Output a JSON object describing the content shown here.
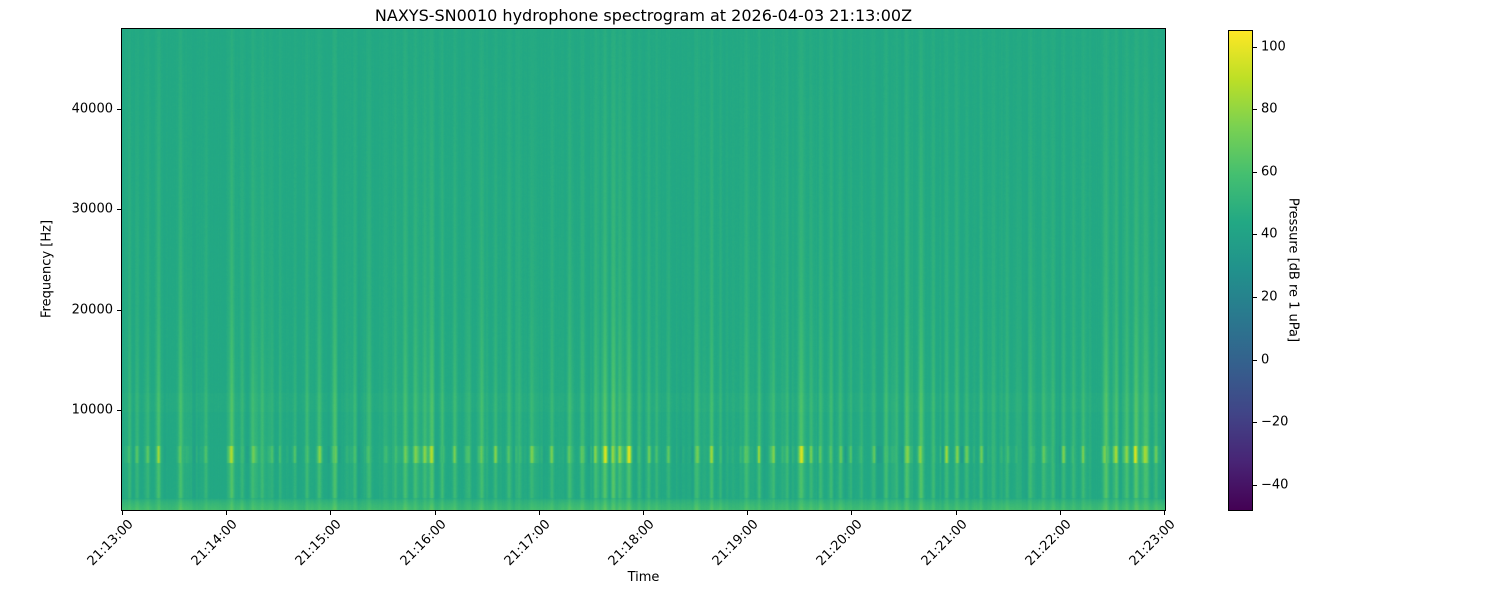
{
  "chart_data": {
    "type": "heatmap",
    "subtype": "spectrogram",
    "title": "NAXYS-SN0010 hydrophone spectrogram at 2026-04-03 21:13:00Z",
    "xlabel": "Time",
    "ylabel": "Frequency [Hz]",
    "x_tick_labels": [
      "21:13:00",
      "21:14:00",
      "21:15:00",
      "21:16:00",
      "21:17:00",
      "21:18:00",
      "21:19:00",
      "21:20:00",
      "21:21:00",
      "21:22:00",
      "21:23:00"
    ],
    "y_tick_values": [
      40000,
      30000,
      20000,
      10000
    ],
    "y_tick_labels": [
      "40000",
      "30000",
      "20000",
      "10000"
    ],
    "y_range_hz": [
      0,
      48000
    ],
    "grid": false,
    "colorbar": {
      "label": "Pressure [dB re 1 uPa]",
      "tick_values": [
        100,
        80,
        60,
        40,
        20,
        0,
        -20,
        -40
      ],
      "tick_labels": [
        "100",
        "80",
        "60",
        "40",
        "20",
        "0",
        "−20",
        "−40"
      ],
      "vmin": -48,
      "vmax": 105,
      "colormap": "viridis",
      "stops": [
        "#440154",
        "#482475",
        "#414487",
        "#355f8d",
        "#2a788e",
        "#21918c",
        "#22a884",
        "#44bf70",
        "#7ad151",
        "#bddf26",
        "#fde725"
      ],
      "position": "right"
    },
    "background_db": 44,
    "features": {
      "bottom_band": {
        "f_max_hz": 1100,
        "boost_db": 12
      },
      "mid_band": {
        "f_min_hz": 9800,
        "f_max_hz": 11700,
        "boost_db": 1.2
      },
      "blob_band": {
        "f_min_hz": 4600,
        "f_max_hz": 6300
      },
      "transient_db_scale": 20,
      "transients": [
        [
          0.007,
          0.5
        ],
        [
          0.014,
          0.45
        ],
        [
          0.024,
          0.4
        ],
        [
          0.035,
          0.55
        ],
        [
          0.056,
          0.75
        ],
        [
          0.08,
          0.5
        ],
        [
          0.105,
          0.85
        ],
        [
          0.115,
          0.5
        ],
        [
          0.125,
          0.45
        ],
        [
          0.134,
          0.6
        ],
        [
          0.151,
          0.4
        ],
        [
          0.166,
          0.5
        ],
        [
          0.177,
          0.45
        ],
        [
          0.189,
          0.7
        ],
        [
          0.204,
          0.9
        ],
        [
          0.223,
          0.5
        ],
        [
          0.237,
          0.6
        ],
        [
          0.252,
          0.45
        ],
        [
          0.262,
          0.5
        ],
        [
          0.271,
          0.55
        ],
        [
          0.281,
          0.5
        ],
        [
          0.29,
          0.6
        ],
        [
          0.297,
          0.95
        ],
        [
          0.307,
          0.55
        ],
        [
          0.319,
          0.5
        ],
        [
          0.333,
          0.45
        ],
        [
          0.345,
          0.65
        ],
        [
          0.358,
          0.5
        ],
        [
          0.371,
          0.6
        ],
        [
          0.381,
          0.45
        ],
        [
          0.393,
          0.5
        ],
        [
          0.412,
          0.55
        ],
        [
          0.429,
          0.65
        ],
        [
          0.441,
          0.5
        ],
        [
          0.454,
          0.7
        ],
        [
          0.463,
          1.0
        ],
        [
          0.471,
          0.85
        ],
        [
          0.477,
          0.7
        ],
        [
          0.486,
          0.9
        ],
        [
          0.496,
          0.5
        ],
        [
          0.505,
          0.55
        ],
        [
          0.513,
          0.5
        ],
        [
          0.524,
          0.45
        ],
        [
          0.551,
          0.75
        ],
        [
          0.565,
          0.6
        ],
        [
          0.574,
          0.45
        ],
        [
          0.599,
          0.85
        ],
        [
          0.611,
          0.55
        ],
        [
          0.625,
          0.6
        ],
        [
          0.638,
          0.5
        ],
        [
          0.651,
          0.8
        ],
        [
          0.661,
          0.55
        ],
        [
          0.67,
          0.5
        ],
        [
          0.68,
          0.6
        ],
        [
          0.689,
          0.55
        ],
        [
          0.699,
          0.5
        ],
        [
          0.709,
          0.45
        ],
        [
          0.721,
          0.6
        ],
        [
          0.733,
          0.55
        ],
        [
          0.743,
          0.5
        ],
        [
          0.753,
          0.8
        ],
        [
          0.766,
          0.85
        ],
        [
          0.778,
          0.5
        ],
        [
          0.791,
          0.6
        ],
        [
          0.801,
          0.55
        ],
        [
          0.81,
          0.5
        ],
        [
          0.824,
          0.6
        ],
        [
          0.836,
          0.55
        ],
        [
          0.849,
          0.5
        ],
        [
          0.858,
          0.45
        ],
        [
          0.871,
          0.6
        ],
        [
          0.884,
          0.5
        ],
        [
          0.893,
          0.55
        ],
        [
          0.903,
          0.5
        ],
        [
          0.913,
          0.6
        ],
        [
          0.922,
          0.55
        ],
        [
          0.944,
          0.95
        ],
        [
          0.954,
          0.85
        ],
        [
          0.964,
          0.7
        ],
        [
          0.973,
          0.9
        ],
        [
          0.983,
          0.8
        ],
        [
          0.992,
          0.6
        ]
      ]
    }
  }
}
